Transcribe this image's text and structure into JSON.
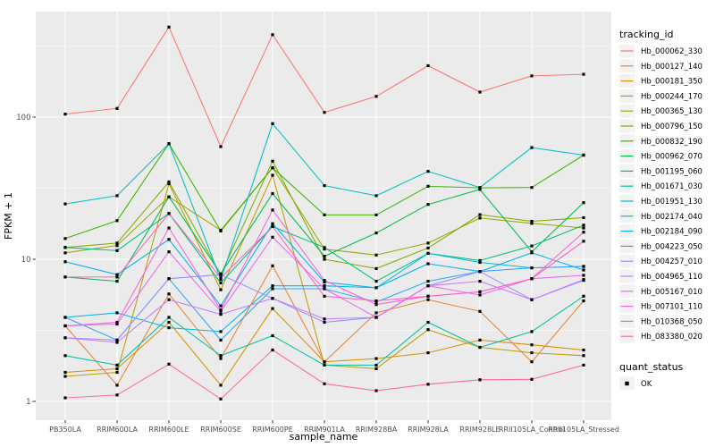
{
  "figure": {
    "background": "#FFFFFF"
  },
  "panel": {
    "background": "#EBEBEB",
    "grid_major_color": "#FFFFFF",
    "grid_minor_color": "#FFFFFF",
    "tick_mark_color": "#333333",
    "tick_label_color": "#4D4D4D",
    "axis_title_color": "#000000",
    "legend_key_background": "#F2F2F2"
  },
  "chart_data": {
    "type": "line",
    "title": "",
    "xlabel": "sample_name",
    "ylabel": "FPKM + 1",
    "y_scale": "log10",
    "ylim": [
      0.74,
      550
    ],
    "grid": true,
    "y_ticks": [
      {
        "value": 1,
        "label": "1"
      },
      {
        "value": 10,
        "label": "10"
      },
      {
        "value": 100,
        "label": "100"
      }
    ],
    "y_minor_ticks": [
      3.162,
      31.62,
      316.2
    ],
    "x_categories": [
      "PB350LA",
      "RRIM600LA",
      "RRIM600LE",
      "RRIM600SE",
      "RRIM600PE",
      "RRIM901LA",
      "RRIM928BA",
      "RRIM928LA",
      "RRIM928LE",
      "RRII105LA_Control",
      "RRII105LA_Stressed"
    ],
    "marker": {
      "shape": "square",
      "color": "#000000",
      "size": 3.2
    },
    "legend": {
      "title": "tracking_id",
      "position": "right"
    },
    "legend2": {
      "title": "quant_status",
      "items": [
        {
          "label": "OK",
          "marker": "black-square"
        }
      ]
    },
    "series": [
      {
        "name": "Hb_000062_330",
        "color": "#F8766D",
        "values": [
          105,
          115,
          430,
          62,
          380,
          108,
          140,
          230,
          150,
          195,
          200
        ]
      },
      {
        "name": "Hb_000127_140",
        "color": "#EA8331",
        "values": [
          3.4,
          1.3,
          5.7,
          2.0,
          9.0,
          1.9,
          4.2,
          5.2,
          4.3,
          1.9,
          5.1
        ]
      },
      {
        "name": "Hb_000181_350",
        "color": "#D89000",
        "values": [
          1.6,
          1.7,
          3.6,
          1.3,
          4.5,
          1.9,
          2.0,
          2.2,
          2.7,
          2.5,
          2.3
        ]
      },
      {
        "name": "Hb_000244_170",
        "color": "#C09B00",
        "values": [
          1.5,
          1.6,
          34,
          6.1,
          39,
          1.8,
          1.7,
          3.2,
          2.4,
          2.2,
          2.1
        ]
      },
      {
        "name": "Hb_000365_130",
        "color": "#A3A500",
        "values": [
          11.1,
          12.5,
          27.5,
          16,
          44,
          11.8,
          10.7,
          13,
          19.5,
          17.9,
          16.6
        ]
      },
      {
        "name": "Hb_000796_150",
        "color": "#7CAE00",
        "values": [
          12.1,
          13,
          35,
          7.8,
          49,
          10,
          8.6,
          12,
          20.6,
          18.5,
          19.6
        ]
      },
      {
        "name": "Hb_000832_190",
        "color": "#39B600",
        "values": [
          14,
          18.7,
          65,
          15.8,
          44,
          20.5,
          20.5,
          32.6,
          31.8,
          32,
          54
        ]
      },
      {
        "name": "Hb_000962_070",
        "color": "#00BB4E",
        "values": [
          7.5,
          7.0,
          27.5,
          7.9,
          29,
          10.5,
          15.3,
          24.3,
          31,
          11.3,
          25
        ]
      },
      {
        "name": "Hb_001195_060",
        "color": "#00BF7D",
        "values": [
          12.1,
          11.5,
          21,
          6.8,
          17,
          12.1,
          7.0,
          11,
          9.8,
          12.4,
          17.4
        ]
      },
      {
        "name": "Hb_001671_030",
        "color": "#00C1A3",
        "values": [
          2.1,
          1.8,
          3.9,
          2.1,
          2.9,
          1.8,
          1.8,
          3.6,
          2.4,
          3.1,
          5.5
        ]
      },
      {
        "name": "Hb_001951_130",
        "color": "#00BFC4",
        "values": [
          24.5,
          28,
          65,
          7.2,
          90,
          33,
          28,
          41.5,
          32,
          61,
          54
        ]
      },
      {
        "name": "Hb_002174_040",
        "color": "#00BAE0",
        "values": [
          3.9,
          4.2,
          3.3,
          3.1,
          6.5,
          6.5,
          6.3,
          11,
          9.5,
          8.7,
          8.9
        ]
      },
      {
        "name": "Hb_002184_090",
        "color": "#00B0F6",
        "values": [
          9.6,
          7.8,
          13.8,
          4.7,
          17.8,
          6.9,
          6.3,
          9.3,
          8.2,
          11.1,
          8.4
        ]
      },
      {
        "name": "Hb_004223_050",
        "color": "#35A2FF",
        "values": [
          3.9,
          2.7,
          7.3,
          2.7,
          6.2,
          6.2,
          5.0,
          7.0,
          8.2,
          8.7,
          8.9
        ]
      },
      {
        "name": "Hb_004257_010",
        "color": "#9590FF",
        "values": [
          2.8,
          2.7,
          7.3,
          7.8,
          5.3,
          3.6,
          3.9,
          6.5,
          8.2,
          5.2,
          7.1
        ]
      },
      {
        "name": "Hb_004965_110",
        "color": "#C77CFF",
        "values": [
          2.8,
          2.6,
          5.2,
          4.1,
          5.3,
          3.8,
          3.9,
          6.5,
          7.0,
          5.2,
          7.2
        ]
      },
      {
        "name": "Hb_005167_010",
        "color": "#E76BF3",
        "values": [
          3.4,
          3.5,
          11.3,
          4.3,
          14.3,
          6.2,
          3.9,
          6.5,
          5.6,
          7.3,
          7.7
        ]
      },
      {
        "name": "Hb_007101_110",
        "color": "#FA62DB",
        "values": [
          3.4,
          3.6,
          16.6,
          4.4,
          22.2,
          7.1,
          4.8,
          5.5,
          5.9,
          7.3,
          15.5
        ]
      },
      {
        "name": "Hb_010368_050",
        "color": "#FF62BC",
        "values": [
          7.5,
          7.5,
          21,
          7.4,
          17,
          5.5,
          5.1,
          5.5,
          5.9,
          7.3,
          13.4
        ]
      },
      {
        "name": "Hb_083380_020",
        "color": "#FF6A98",
        "values": [
          1.06,
          1.11,
          1.83,
          1.04,
          2.3,
          1.33,
          1.19,
          1.32,
          1.42,
          1.43,
          1.8
        ]
      }
    ]
  }
}
